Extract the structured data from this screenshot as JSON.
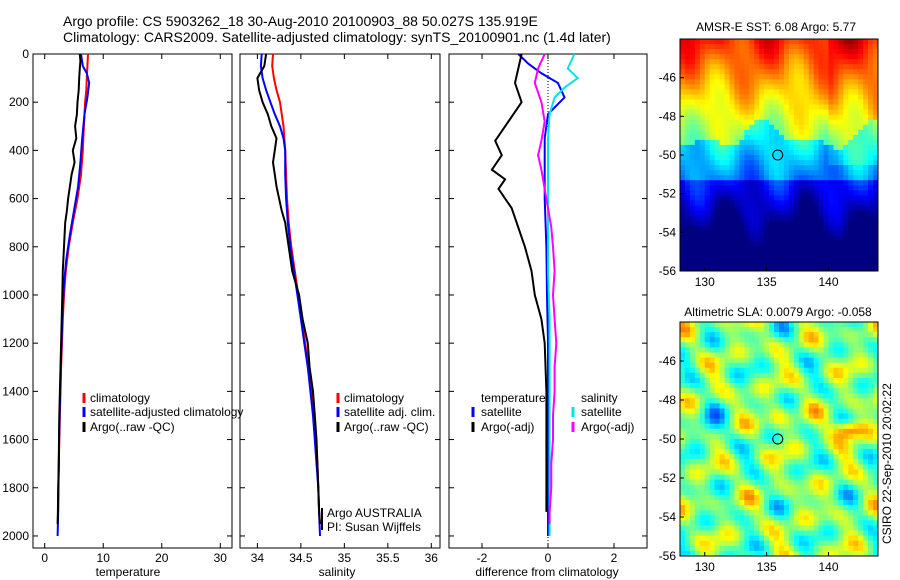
{
  "header": {
    "line1": "Argo profile: CS 5903262_18 30-Aug-2010 20100903_88 50.027S 135.919E",
    "line2": "Climatology: CARS2009. Satellite-adjusted climatology: synTS_20100901.nc (1.4d later)"
  },
  "colors": {
    "climatology": "#ff0000",
    "satellite": "#0000ff",
    "argo": "#000000",
    "sal_satellite": "#00e5e5",
    "sal_argo": "#ff00ff"
  },
  "chart_data": [
    {
      "type": "line",
      "xlabel": "temperature",
      "ylabel": "",
      "xlim": [
        -2,
        32
      ],
      "ylim": [
        2050,
        0
      ],
      "x_ticks": [
        "0",
        "10",
        "20",
        "30"
      ],
      "y_ticks": [
        "0",
        "200",
        "400",
        "600",
        "800",
        "1000",
        "1200",
        "1400",
        "1600",
        "1800",
        "2000"
      ],
      "legend": [
        "climatology",
        "satellite-adjusted climatology",
        "Argo(..raw -QC)"
      ],
      "series": [
        {
          "name": "climatology",
          "color": "#ff0000",
          "points": [
            [
              7.4,
              0
            ],
            [
              7.3,
              50
            ],
            [
              7.2,
              100
            ],
            [
              7.1,
              150
            ],
            [
              6.9,
              200
            ],
            [
              6.7,
              300
            ],
            [
              6.5,
              400
            ],
            [
              6.2,
              500
            ],
            [
              5.6,
              600
            ],
            [
              4.8,
              700
            ],
            [
              4.1,
              800
            ],
            [
              3.6,
              900
            ],
            [
              3.3,
              1000
            ],
            [
              3.1,
              1100
            ],
            [
              2.95,
              1200
            ],
            [
              2.8,
              1300
            ],
            [
              2.7,
              1400
            ],
            [
              2.6,
              1500
            ],
            [
              2.5,
              1600
            ],
            [
              2.4,
              1700
            ],
            [
              2.35,
              1800
            ],
            [
              2.3,
              1900
            ],
            [
              2.25,
              1950
            ]
          ]
        },
        {
          "name": "satellite-adjusted climatology",
          "color": "#0000ff",
          "points": [
            [
              6.2,
              0
            ],
            [
              6.5,
              50
            ],
            [
              7.2,
              80
            ],
            [
              7.6,
              120
            ],
            [
              7.3,
              180
            ],
            [
              6.8,
              250
            ],
            [
              6.4,
              350
            ],
            [
              6.1,
              450
            ],
            [
              5.7,
              550
            ],
            [
              5.0,
              650
            ],
            [
              4.3,
              750
            ],
            [
              3.7,
              850
            ],
            [
              3.3,
              950
            ],
            [
              3.0,
              1100
            ],
            [
              2.8,
              1250
            ],
            [
              2.65,
              1400
            ],
            [
              2.5,
              1550
            ],
            [
              2.4,
              1700
            ],
            [
              2.3,
              1850
            ],
            [
              2.25,
              1950
            ],
            [
              2.2,
              2000
            ]
          ]
        },
        {
          "name": "Argo(..raw -QC)",
          "color": "#000000",
          "points": [
            [
              6.0,
              0
            ],
            [
              6.1,
              30
            ],
            [
              6.0,
              60
            ],
            [
              5.9,
              100
            ],
            [
              5.8,
              150
            ],
            [
              5.6,
              200
            ],
            [
              5.5,
              250
            ],
            [
              5.2,
              300
            ],
            [
              5.4,
              350
            ],
            [
              4.8,
              400
            ],
            [
              5.1,
              450
            ],
            [
              4.6,
              500
            ],
            [
              4.3,
              550
            ],
            [
              4.0,
              600
            ],
            [
              3.8,
              650
            ],
            [
              3.5,
              700
            ],
            [
              3.4,
              750
            ],
            [
              3.3,
              800
            ],
            [
              3.1,
              900
            ],
            [
              3.0,
              1000
            ],
            [
              2.9,
              1100
            ],
            [
              2.8,
              1200
            ],
            [
              2.7,
              1300
            ],
            [
              2.6,
              1400
            ],
            [
              2.5,
              1500
            ],
            [
              2.45,
              1600
            ],
            [
              2.4,
              1700
            ],
            [
              2.3,
              1800
            ],
            [
              2.25,
              1900
            ],
            [
              2.2,
              1950
            ]
          ]
        }
      ]
    },
    {
      "type": "line",
      "xlabel": "salinity",
      "ylabel": "",
      "xlim": [
        33.8,
        36.1
      ],
      "ylim": [
        2050,
        0
      ],
      "x_ticks": [
        "34",
        "34.5",
        "35",
        "35.5",
        "36"
      ],
      "legend": [
        "climatology",
        "satellite adj. clim.",
        "Argo(..raw -QC)"
      ],
      "annotations": [
        "Argo AUSTRALIA",
        "PI: Susan Wijffels"
      ],
      "series": [
        {
          "name": "climatology",
          "color": "#ff0000",
          "points": [
            [
              34.18,
              0
            ],
            [
              34.17,
              50
            ],
            [
              34.19,
              100
            ],
            [
              34.22,
              150
            ],
            [
              34.26,
              200
            ],
            [
              34.3,
              300
            ],
            [
              34.32,
              400
            ],
            [
              34.33,
              500
            ],
            [
              34.34,
              600
            ],
            [
              34.36,
              700
            ],
            [
              34.39,
              800
            ],
            [
              34.43,
              900
            ],
            [
              34.47,
              1000
            ],
            [
              34.51,
              1100
            ],
            [
              34.55,
              1200
            ],
            [
              34.59,
              1300
            ],
            [
              34.62,
              1400
            ],
            [
              34.65,
              1500
            ],
            [
              34.67,
              1600
            ],
            [
              34.69,
              1700
            ],
            [
              34.7,
              1800
            ],
            [
              34.71,
              1900
            ],
            [
              34.72,
              1950
            ]
          ]
        },
        {
          "name": "satellite adj. clim.",
          "color": "#0000ff",
          "points": [
            [
              34.05,
              0
            ],
            [
              34.04,
              50
            ],
            [
              34.06,
              100
            ],
            [
              34.1,
              150
            ],
            [
              34.15,
              200
            ],
            [
              34.2,
              250
            ],
            [
              34.26,
              300
            ],
            [
              34.3,
              350
            ],
            [
              34.32,
              400
            ],
            [
              34.32,
              500
            ],
            [
              34.33,
              600
            ],
            [
              34.35,
              700
            ],
            [
              34.38,
              800
            ],
            [
              34.42,
              900
            ],
            [
              34.46,
              1000
            ],
            [
              34.5,
              1100
            ],
            [
              34.54,
              1200
            ],
            [
              34.58,
              1300
            ],
            [
              34.61,
              1400
            ],
            [
              34.64,
              1500
            ],
            [
              34.66,
              1600
            ],
            [
              34.68,
              1700
            ],
            [
              34.7,
              1800
            ],
            [
              34.71,
              1900
            ],
            [
              34.72,
              2000
            ]
          ]
        },
        {
          "name": "Argo(..raw -QC)",
          "color": "#000000",
          "points": [
            [
              34.1,
              0
            ],
            [
              34.08,
              50
            ],
            [
              34.0,
              100
            ],
            [
              34.02,
              150
            ],
            [
              34.06,
              200
            ],
            [
              34.12,
              250
            ],
            [
              34.16,
              300
            ],
            [
              34.22,
              350
            ],
            [
              34.2,
              400
            ],
            [
              34.18,
              450
            ],
            [
              34.2,
              500
            ],
            [
              34.22,
              550
            ],
            [
              34.25,
              600
            ],
            [
              34.28,
              650
            ],
            [
              34.32,
              700
            ],
            [
              34.36,
              800
            ],
            [
              34.4,
              900
            ],
            [
              34.48,
              1000
            ],
            [
              34.52,
              1100
            ],
            [
              34.58,
              1200
            ],
            [
              34.6,
              1300
            ],
            [
              34.64,
              1400
            ],
            [
              34.66,
              1500
            ],
            [
              34.68,
              1600
            ],
            [
              34.69,
              1700
            ],
            [
              34.7,
              1800
            ],
            [
              34.71,
              1900
            ],
            [
              34.72,
              1950
            ]
          ]
        }
      ]
    },
    {
      "type": "line",
      "xlabel": "difference from climatology",
      "ylabel": "",
      "xlim": [
        -3,
        3
      ],
      "ylim": [
        2050,
        0
      ],
      "x_ticks": [
        "-2",
        "0",
        "2"
      ],
      "legend_headers": [
        "temperature",
        "salinity"
      ],
      "legend": [
        "satellite",
        "Argo(-adj)",
        "satellite",
        "Argo(-adj)"
      ],
      "series": [
        {
          "name": "temperature satellite",
          "color": "#0000ff",
          "points": [
            [
              -0.9,
              0
            ],
            [
              -0.6,
              40
            ],
            [
              -0.2,
              80
            ],
            [
              0.3,
              120
            ],
            [
              0.5,
              180
            ],
            [
              0.0,
              250
            ],
            [
              -0.1,
              350
            ],
            [
              -0.1,
              450
            ],
            [
              -0.1,
              600
            ],
            [
              -0.05,
              800
            ],
            [
              -0.03,
              1000
            ],
            [
              0.0,
              1200
            ],
            [
              0.0,
              1500
            ],
            [
              0.0,
              1800
            ],
            [
              0.0,
              2000
            ]
          ]
        },
        {
          "name": "temperature Argo(-adj)",
          "color": "#000000",
          "points": [
            [
              -0.8,
              0
            ],
            [
              -0.9,
              60
            ],
            [
              -1.0,
              120
            ],
            [
              -0.8,
              200
            ],
            [
              -1.2,
              280
            ],
            [
              -1.6,
              360
            ],
            [
              -1.4,
              420
            ],
            [
              -1.7,
              480
            ],
            [
              -1.3,
              520
            ],
            [
              -1.5,
              560
            ],
            [
              -1.1,
              640
            ],
            [
              -0.9,
              720
            ],
            [
              -0.7,
              800
            ],
            [
              -0.5,
              900
            ],
            [
              -0.4,
              1000
            ],
            [
              -0.2,
              1100
            ],
            [
              -0.1,
              1200
            ],
            [
              -0.05,
              1400
            ],
            [
              -0.05,
              1600
            ],
            [
              -0.05,
              1800
            ],
            [
              -0.05,
              1900
            ]
          ]
        },
        {
          "name": "salinity satellite",
          "color": "#00e5e5",
          "points": [
            [
              0.8,
              0
            ],
            [
              0.6,
              60
            ],
            [
              0.9,
              100
            ],
            [
              0.5,
              140
            ],
            [
              0.2,
              180
            ],
            [
              0.05,
              250
            ],
            [
              0.0,
              350
            ],
            [
              0.0,
              500
            ],
            [
              0.0,
              700
            ],
            [
              0.0,
              900
            ],
            [
              0.05,
              1100
            ],
            [
              0.05,
              1300
            ],
            [
              0.05,
              1500
            ],
            [
              0.05,
              1700
            ],
            [
              0.05,
              1900
            ],
            [
              0.05,
              2000
            ]
          ]
        },
        {
          "name": "salinity Argo(-adj)",
          "color": "#ff00ff",
          "points": [
            [
              -0.1,
              0
            ],
            [
              -0.3,
              60
            ],
            [
              -0.4,
              120
            ],
            [
              -0.2,
              200
            ],
            [
              -0.1,
              280
            ],
            [
              -0.2,
              360
            ],
            [
              -0.3,
              420
            ],
            [
              -0.2,
              480
            ],
            [
              -0.1,
              560
            ],
            [
              0.0,
              640
            ],
            [
              0.1,
              720
            ],
            [
              0.15,
              800
            ],
            [
              0.2,
              900
            ],
            [
              0.15,
              1000
            ],
            [
              0.2,
              1100
            ],
            [
              0.25,
              1200
            ],
            [
              0.2,
              1300
            ],
            [
              0.2,
              1400
            ],
            [
              0.15,
              1500
            ],
            [
              0.15,
              1600
            ],
            [
              0.1,
              1700
            ],
            [
              0.1,
              1800
            ],
            [
              0.05,
              1900
            ],
            [
              0.05,
              1950
            ]
          ]
        }
      ]
    },
    {
      "type": "heatmap",
      "title": "AMSR-E SST: 6.08 Argo: 5.77",
      "x_ticks": [
        "130",
        "135",
        "140"
      ],
      "y_ticks": [
        "-46",
        "-48",
        "-50",
        "-52",
        "-54",
        "-56"
      ],
      "xlim": [
        128,
        144
      ],
      "ylim": [
        -56,
        -44
      ],
      "marker": [
        135.9,
        -50.0
      ],
      "colormap": "jet"
    },
    {
      "type": "heatmap",
      "title": "Altimetric SLA: 0.0079 Argo: -0.058",
      "x_ticks": [
        "130",
        "135",
        "140"
      ],
      "y_ticks": [
        "-46",
        "-48",
        "-50",
        "-52",
        "-54",
        "-56"
      ],
      "xlim": [
        128,
        144
      ],
      "ylim": [
        -56,
        -44
      ],
      "marker": [
        135.9,
        -50.0
      ],
      "colormap": "jet"
    }
  ],
  "footer": {
    "stamp": "CSIRO 22-Sep-2010 20:02:22"
  }
}
